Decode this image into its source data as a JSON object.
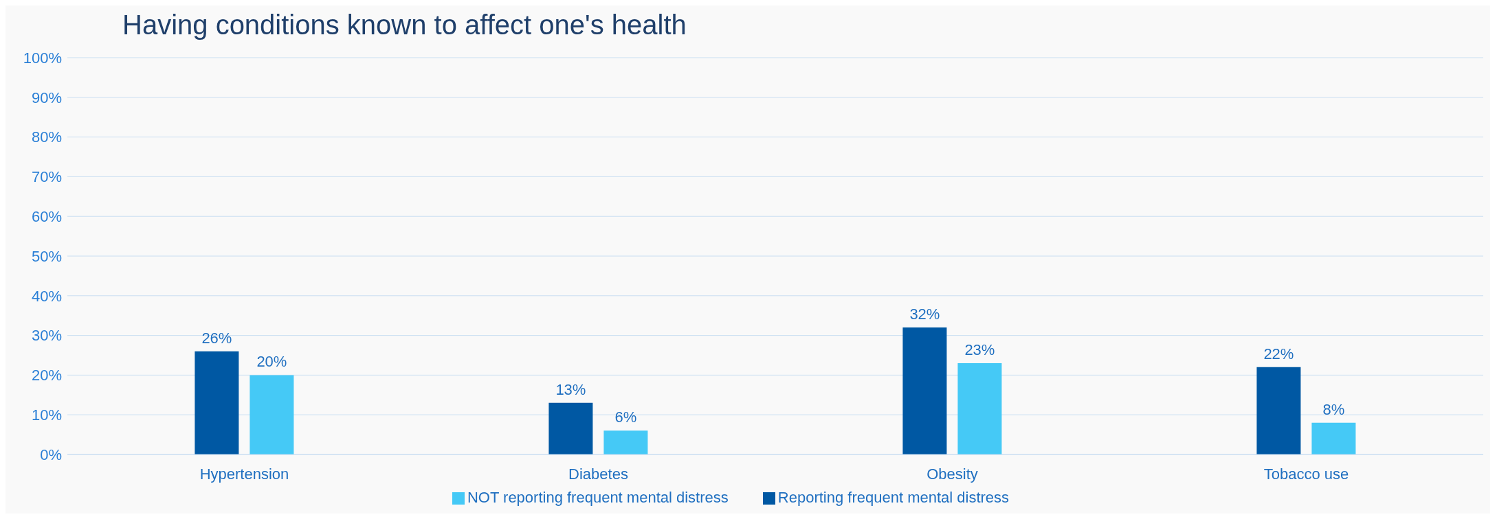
{
  "chart_data": {
    "type": "bar",
    "title": "Having conditions known to affect one's health",
    "categories": [
      "Hypertension",
      "Diabetes",
      "Obesity",
      "Tobacco use"
    ],
    "series": [
      {
        "name": "Reporting frequent mental distress",
        "color": "#0058a3",
        "values": [
          26,
          13,
          32,
          22
        ],
        "value_labels": [
          "26%",
          "13%",
          "32%",
          "22%"
        ]
      },
      {
        "name": "NOT reporting frequent mental distress",
        "color": "#45c9f6",
        "values": [
          20,
          6,
          23,
          8
        ],
        "value_labels": [
          "20%",
          "6%",
          "23%",
          "8%"
        ]
      }
    ],
    "ylim": [
      0,
      100
    ],
    "yticks": [
      {
        "value": 0,
        "label": "0%"
      },
      {
        "value": 10,
        "label": "10%"
      },
      {
        "value": 20,
        "label": "20%"
      },
      {
        "value": 30,
        "label": "30%"
      },
      {
        "value": 40,
        "label": "40%"
      },
      {
        "value": 50,
        "label": "50%"
      },
      {
        "value": 60,
        "label": "60%"
      },
      {
        "value": 70,
        "label": "70%"
      },
      {
        "value": 80,
        "label": "80%"
      },
      {
        "value": 90,
        "label": "90%"
      },
      {
        "value": 100,
        "label": "100%"
      }
    ],
    "grid": "y",
    "legend": "bottom"
  }
}
